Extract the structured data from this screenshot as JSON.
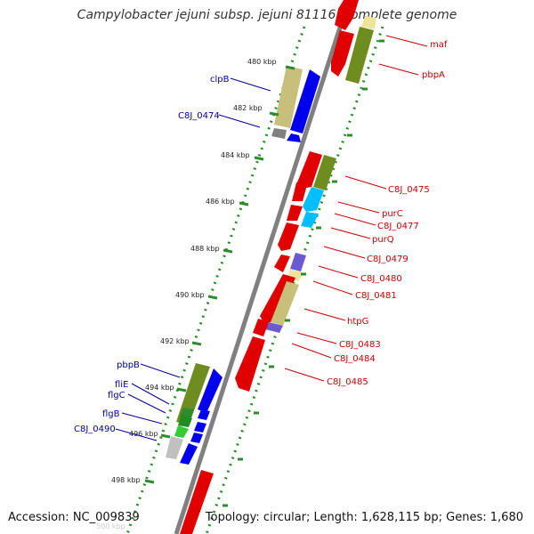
{
  "title": "Campylobacter jejuni subsp. jejuni 81116, complete genome",
  "footer": {
    "accession": "Accession: NC_009839",
    "info": "Topology: circular; Length: 1,628,115 bp; Genes: 1,680"
  },
  "colors": {
    "backbone": "#808080",
    "scale_dots": "#228b22",
    "tick": "#2e8b2e",
    "right_label": "#cc0000",
    "left_label": "#000099"
  },
  "scale_ticks": [
    "480 kbp",
    "482 kbp",
    "484 kbp",
    "486 kbp",
    "488 kbp",
    "490 kbp",
    "492 kbp",
    "494 kbp",
    "496 kbp",
    "498 kbp",
    "500 kbp"
  ],
  "right_labels": [
    "maf",
    "pbpA",
    "C8J_0475",
    "purC",
    "C8J_0477",
    "purQ",
    "C8J_0479",
    "C8J_0480",
    "C8J_0481",
    "htpG",
    "C8J_0483",
    "C8J_0484",
    "C8J_0485"
  ],
  "left_labels": [
    "clpB",
    "C8J_0474",
    "pbpB",
    "fliE",
    "flgC",
    "flgB",
    "C8J_0490"
  ]
}
